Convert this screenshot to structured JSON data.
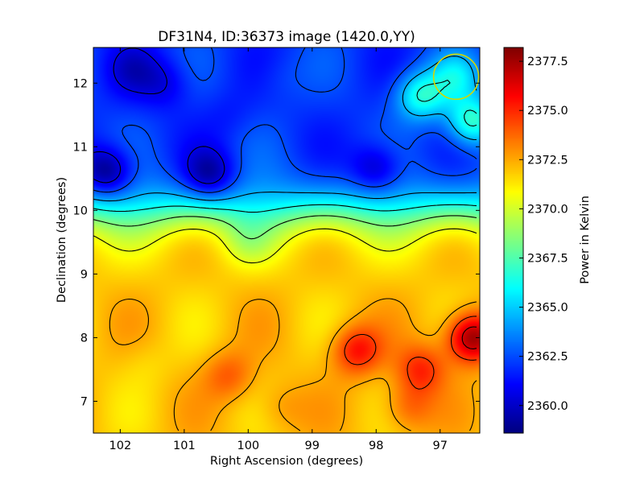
{
  "chart_data": {
    "type": "heatmap",
    "title": "DF31N4, ID:36373 image (1420.0,YY)",
    "xlabel": "Right Ascension (degrees)",
    "ylabel": "Declination (degrees)",
    "xlim": [
      102.42,
      96.38
    ],
    "ylim": [
      6.5,
      12.56
    ],
    "x_ticks": [
      "102",
      "101",
      "100",
      "99",
      "98",
      "97"
    ],
    "x_tick_values": [
      102,
      101,
      100,
      99,
      98,
      97
    ],
    "y_ticks": [
      "7",
      "8",
      "9",
      "10",
      "11",
      "12"
    ],
    "y_tick_values": [
      7,
      8,
      9,
      10,
      11,
      12
    ],
    "colorbar": {
      "label": "Power in Kelvin",
      "range": [
        2358.6,
        2378.2
      ],
      "ticks": [
        "2360.0",
        "2362.5",
        "2365.0",
        "2367.5",
        "2370.0",
        "2372.5",
        "2375.0",
        "2377.5"
      ],
      "tick_values": [
        2360.0,
        2362.5,
        2365.0,
        2367.5,
        2370.0,
        2372.5,
        2375.0,
        2377.5
      ],
      "colormap": "jet"
    },
    "features": [
      {
        "ra": 102.2,
        "dec": 10.6,
        "value": 2359.0
      },
      {
        "ra": 101.8,
        "dec": 12.2,
        "value": 2360.5
      },
      {
        "ra": 101.3,
        "dec": 12.0,
        "value": 2360.5
      },
      {
        "ra": 100.6,
        "dec": 10.55,
        "value": 2359.8
      },
      {
        "ra": 100.3,
        "dec": 11.5,
        "value": 2361.5
      },
      {
        "ra": 98.0,
        "dec": 10.65,
        "value": 2360.0
      },
      {
        "ra": 98.5,
        "dec": 11.9,
        "value": 2362.0
      },
      {
        "ra": 99.5,
        "dec": 12.1,
        "value": 2362.5
      },
      {
        "ra": 96.75,
        "dec": 12.1,
        "value": 2365.0
      },
      {
        "ra": 97.3,
        "dec": 11.8,
        "value": 2366.5
      },
      {
        "ra": 96.5,
        "dec": 11.4,
        "value": 2367.0
      },
      {
        "ra": 100.0,
        "dec": 9.5,
        "value": 2369.5
      },
      {
        "ra": 101.6,
        "dec": 7.6,
        "value": 2371.5
      },
      {
        "ra": 100.3,
        "dec": 7.4,
        "value": 2374.0
      },
      {
        "ra": 98.3,
        "dec": 7.8,
        "value": 2375.5
      },
      {
        "ra": 96.5,
        "dec": 8.0,
        "value": 2378.0
      },
      {
        "ra": 97.3,
        "dec": 7.5,
        "value": 2375.0
      },
      {
        "ra": 97.5,
        "dec": 6.9,
        "value": 2374.0
      },
      {
        "ra": 99.5,
        "dec": 6.9,
        "value": 2373.0
      }
    ],
    "background": {
      "low_dec": 2372.0,
      "high_dec": 2362.0,
      "transition_dec": 10.0
    },
    "contour_levels": [
      2360.5,
      2362.5,
      2364.5,
      2366.5,
      2368.5,
      2370.5,
      2372.5,
      2374.5,
      2376.5
    ],
    "beam_marker": {
      "ra": 96.75,
      "dec": 12.1,
      "color": "#d6d600"
    },
    "grid": false
  }
}
